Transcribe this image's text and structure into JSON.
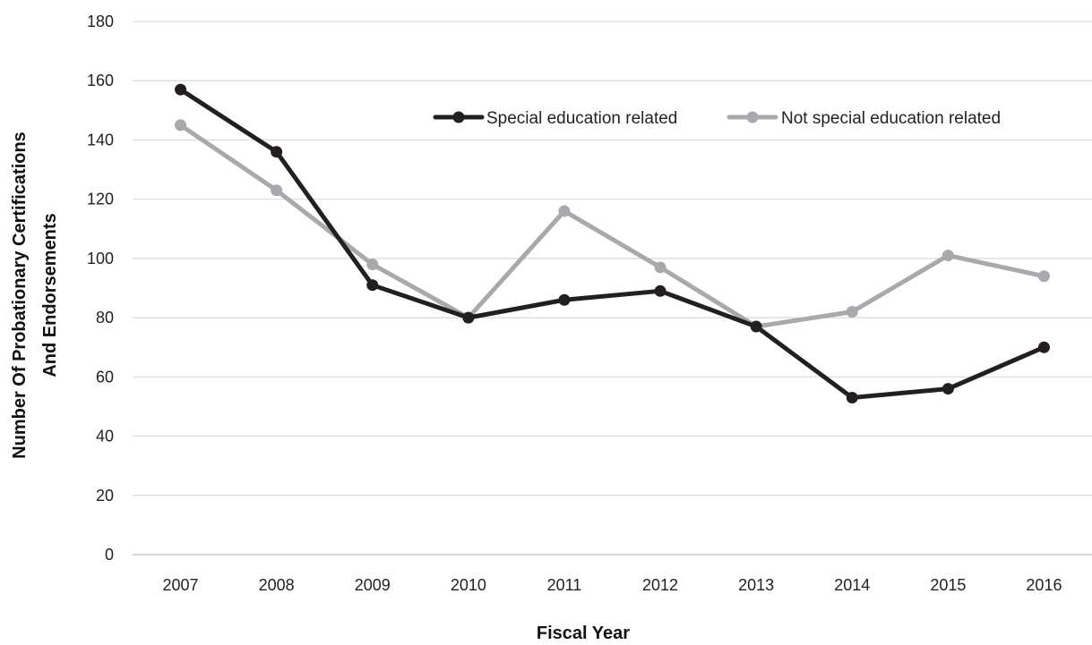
{
  "chart_data": {
    "type": "line",
    "title": "",
    "xlabel": "Fiscal Year",
    "ylabel_line1": "Number Of Probationary Certifications",
    "ylabel_line2": "And Endorsements",
    "categories": [
      "2007",
      "2008",
      "2009",
      "2010",
      "2011",
      "2012",
      "2013",
      "2014",
      "2015",
      "2016"
    ],
    "ylim": [
      0,
      180
    ],
    "yticks": [
      0,
      20,
      40,
      60,
      80,
      100,
      120,
      140,
      160,
      180
    ],
    "grid": true,
    "legend_position": "top-right",
    "series": [
      {
        "name": "Special education related",
        "color": "#231f20",
        "values": [
          157,
          136,
          91,
          80,
          86,
          89,
          77,
          53,
          56,
          70
        ]
      },
      {
        "name": "Not special education related",
        "color": "#a7a9ac",
        "values": [
          145,
          123,
          98,
          80,
          116,
          97,
          77,
          82,
          101,
          94
        ]
      }
    ]
  }
}
